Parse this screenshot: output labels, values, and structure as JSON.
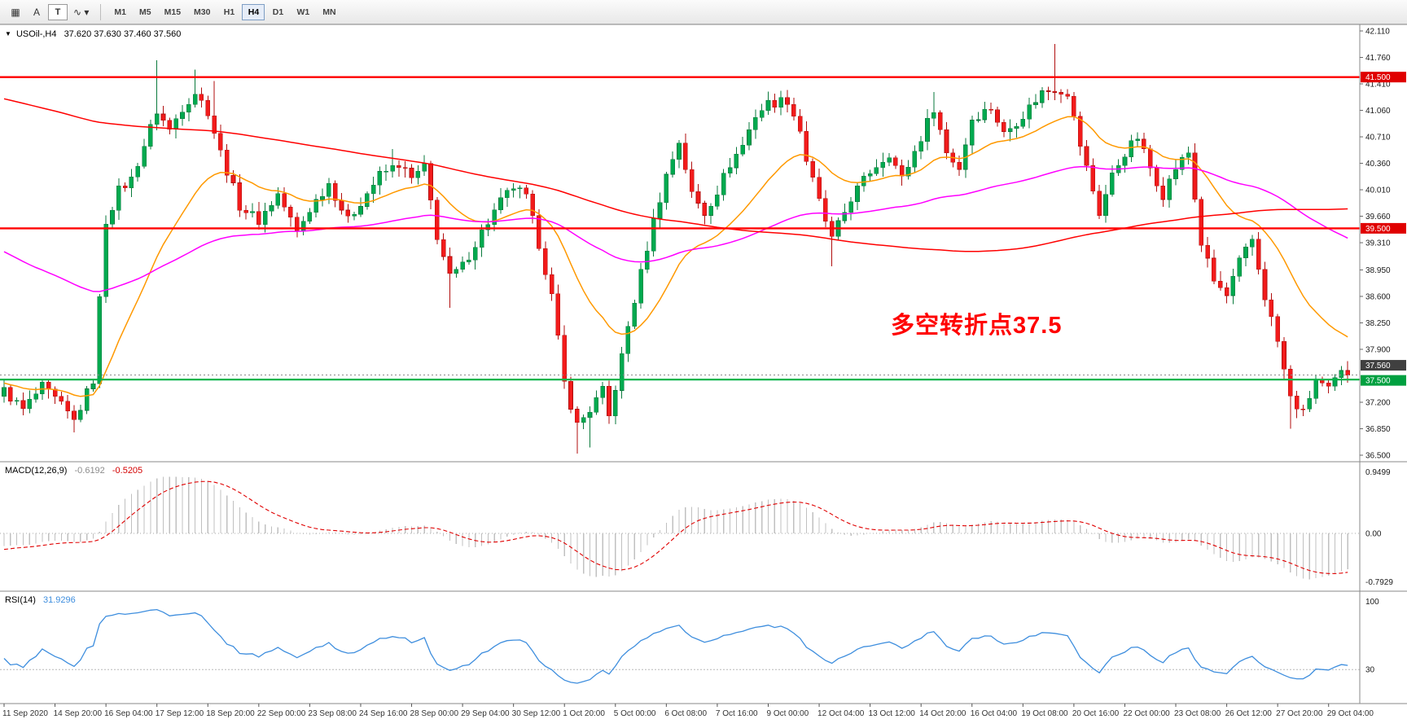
{
  "toolbar": {
    "tools": [
      {
        "id": "charts",
        "glyph": "▦",
        "name": "chart-grid-icon"
      },
      {
        "id": "text",
        "glyph": "A",
        "name": "text-tool-button"
      },
      {
        "id": "template",
        "glyph": "T",
        "name": "template-tool-button"
      },
      {
        "id": "indicators",
        "glyph": "∿",
        "caret": "▾",
        "name": "indicators-button"
      }
    ],
    "timeframes": [
      "M1",
      "M5",
      "M15",
      "M30",
      "H1",
      "H4",
      "D1",
      "W1",
      "MN"
    ],
    "active": "H4"
  },
  "chart": {
    "header": {
      "caret": "▼",
      "symbol": "USOil-,H4",
      "ohlc": "37.620 37.630 37.460 37.560"
    },
    "annotation": {
      "text": "多空转折点37.5",
      "color": "#FF0000"
    },
    "price_axis": {
      "max": 42.11,
      "min": 36.5,
      "ticks": [
        "42.110",
        "41.760",
        "41.410",
        "41.060",
        "40.710",
        "40.360",
        "40.010",
        "39.660",
        "39.310",
        "38.950",
        "38.600",
        "38.250",
        "37.900",
        "37.200",
        "36.850",
        "36.500"
      ]
    },
    "tags": [
      {
        "value": "41.500",
        "price": 41.5,
        "bg": "#E00000",
        "fg": "#FFFFFF",
        "shift": 0
      },
      {
        "value": "39.500",
        "price": 39.5,
        "bg": "#E00000",
        "fg": "#FFFFFF",
        "shift": 0
      },
      {
        "value": "37.560",
        "price": 37.56,
        "bg": "#404040",
        "fg": "#FFFFFF",
        "shift": -12
      },
      {
        "value": "37.500",
        "price": 37.5,
        "bg": "#00A040",
        "fg": "#FFFFFF",
        "shift": 1
      }
    ],
    "hlines": [
      {
        "price": 41.5,
        "color": "#FF0000",
        "width": 2.4,
        "dash": ""
      },
      {
        "price": 39.5,
        "color": "#FF0000",
        "width": 2.4,
        "dash": ""
      },
      {
        "price": 37.5,
        "color": "#00B44C",
        "width": 2.2,
        "dash": ""
      },
      {
        "price": 37.56,
        "color": "#8a8a8a",
        "width": 1,
        "dash": "2,3"
      }
    ],
    "colors": {
      "up": "#00A94F",
      "up_edge": "#0A7A3C",
      "down": "#F21B1B",
      "down_edge": "#B00E0E"
    },
    "mas": [
      {
        "type": "ema",
        "period": 21,
        "color": "#FF9900"
      },
      {
        "type": "ema",
        "period": 89,
        "color": "#FF00FF"
      },
      {
        "type": "sma",
        "period": 200,
        "color": "#FF0000"
      }
    ]
  },
  "chart_data": {
    "type": "candlestick",
    "symbol": "USOil",
    "timeframe": "H4",
    "visible_candles": 212,
    "ohlc_current": {
      "open": 37.62,
      "high": 37.63,
      "low": 37.46,
      "close": 37.56
    },
    "price_path": [
      [
        0,
        37.35
      ],
      [
        3,
        37.1
      ],
      [
        6,
        37.4
      ],
      [
        9,
        37.15
      ],
      [
        11,
        36.95
      ],
      [
        14,
        37.5
      ],
      [
        16,
        39.6
      ],
      [
        18,
        40.0
      ],
      [
        20,
        40.15
      ],
      [
        22,
        40.6
      ],
      [
        24,
        41.05
      ],
      [
        26,
        40.8
      ],
      [
        28,
        41.1
      ],
      [
        30,
        41.3
      ],
      [
        32,
        41.05
      ],
      [
        34,
        40.5
      ],
      [
        37,
        39.8
      ],
      [
        40,
        39.6
      ],
      [
        43,
        39.95
      ],
      [
        46,
        39.45
      ],
      [
        48,
        39.75
      ],
      [
        51,
        40.1
      ],
      [
        54,
        39.6
      ],
      [
        56,
        39.85
      ],
      [
        59,
        40.2
      ],
      [
        62,
        40.35
      ],
      [
        64,
        40.15
      ],
      [
        66,
        40.3
      ],
      [
        68,
        39.4
      ],
      [
        70,
        38.85
      ],
      [
        72,
        39.0
      ],
      [
        75,
        39.45
      ],
      [
        78,
        39.85
      ],
      [
        80,
        40.05
      ],
      [
        82,
        39.9
      ],
      [
        84,
        39.3
      ],
      [
        86,
        38.6
      ],
      [
        88,
        37.45
      ],
      [
        90,
        36.9
      ],
      [
        92,
        37.1
      ],
      [
        94,
        37.35
      ],
      [
        95,
        37.0
      ],
      [
        96,
        37.4
      ],
      [
        98,
        38.2
      ],
      [
        100,
        38.9
      ],
      [
        102,
        39.6
      ],
      [
        104,
        40.2
      ],
      [
        106,
        40.65
      ],
      [
        108,
        39.95
      ],
      [
        110,
        39.7
      ],
      [
        112,
        40.0
      ],
      [
        114,
        40.35
      ],
      [
        116,
        40.6
      ],
      [
        118,
        41.0
      ],
      [
        120,
        41.15
      ],
      [
        123,
        41.2
      ],
      [
        125,
        40.8
      ],
      [
        126,
        40.4
      ],
      [
        128,
        39.85
      ],
      [
        130,
        39.35
      ],
      [
        133,
        39.9
      ],
      [
        136,
        40.25
      ],
      [
        139,
        40.5
      ],
      [
        141,
        40.15
      ],
      [
        144,
        40.7
      ],
      [
        146,
        41.1
      ],
      [
        148,
        40.5
      ],
      [
        150,
        40.3
      ],
      [
        152,
        40.95
      ],
      [
        155,
        41.1
      ],
      [
        157,
        40.75
      ],
      [
        160,
        41.0
      ],
      [
        163,
        41.3
      ],
      [
        165,
        41.35
      ],
      [
        167,
        41.3
      ],
      [
        169,
        40.6
      ],
      [
        172,
        39.7
      ],
      [
        174,
        40.2
      ],
      [
        176,
        40.5
      ],
      [
        178,
        40.7
      ],
      [
        180,
        40.3
      ],
      [
        182,
        39.95
      ],
      [
        184,
        40.3
      ],
      [
        186,
        40.5
      ],
      [
        188,
        39.3
      ],
      [
        190,
        38.8
      ],
      [
        192,
        38.6
      ],
      [
        194,
        39.05
      ],
      [
        196,
        39.35
      ],
      [
        198,
        38.6
      ],
      [
        200,
        38.0
      ],
      [
        202,
        37.25
      ],
      [
        204,
        37.05
      ],
      [
        206,
        37.5
      ],
      [
        208,
        37.35
      ],
      [
        210,
        37.62
      ],
      [
        211,
        37.56
      ]
    ],
    "pre_session_path": [
      [
        -220,
        40.3
      ],
      [
        -190,
        41.6
      ],
      [
        -160,
        42.3
      ],
      [
        -130,
        42.9
      ],
      [
        -100,
        42.6
      ],
      [
        -70,
        42.2
      ],
      [
        -52,
        41.8
      ],
      [
        -44,
        40.0
      ],
      [
        -36,
        37.6
      ],
      [
        -30,
        36.9
      ],
      [
        -24,
        37.4
      ],
      [
        -16,
        37.9
      ],
      [
        -8,
        37.2
      ],
      [
        -1,
        37.3
      ]
    ],
    "wick_extremes": [
      {
        "i": 11,
        "low": 36.8
      },
      {
        "i": 24,
        "high": 41.72
      },
      {
        "i": 30,
        "high": 41.6
      },
      {
        "i": 33,
        "high": 41.45
      },
      {
        "i": 61,
        "high": 40.55
      },
      {
        "i": 70,
        "low": 38.45
      },
      {
        "i": 90,
        "low": 36.52
      },
      {
        "i": 92,
        "low": 36.6
      },
      {
        "i": 130,
        "low": 39.0
      },
      {
        "i": 146,
        "high": 41.3
      },
      {
        "i": 165,
        "high": 41.94
      },
      {
        "i": 202,
        "low": 36.85
      },
      {
        "i": 211,
        "high": 37.63,
        "low": 37.46
      }
    ]
  },
  "macd": {
    "label": "MACD(12,26,9)",
    "value_main": "-0.6192",
    "value_signal": "-0.5205",
    "axis_max": "0.9499",
    "axis_zero": "0.00",
    "axis_min": "-0.7929",
    "fast": 12,
    "slow": 26,
    "signal": 9,
    "histogram_color": "#C0C0C0",
    "signal_color": "#E00000"
  },
  "rsi": {
    "label": "RSI(14)",
    "value": "31.9296",
    "period": 14,
    "axis_max": "100",
    "level_label": "30",
    "level": 30,
    "color": "#3E8EDE"
  },
  "time_axis": {
    "candles_per_label": 8,
    "labels": [
      "11 Sep 2020",
      "14 Sep 20:00",
      "16 Sep 04:00",
      "17 Sep 12:00",
      "18 Sep 20:00",
      "22 Sep 00:00",
      "23 Sep 08:00",
      "24 Sep 16:00",
      "28 Sep 00:00",
      "29 Sep 04:00",
      "30 Sep 12:00",
      "1 Oct 20:00",
      "5 Oct 00:00",
      "6 Oct 08:00",
      "7 Oct 16:00",
      "9 Oct 00:00",
      "12 Oct 04:00",
      "13 Oct 12:00",
      "14 Oct 20:00",
      "16 Oct 04:00",
      "19 Oct 08:00",
      "20 Oct 16:00",
      "22 Oct 00:00",
      "23 Oct 08:00",
      "26 Oct 12:00",
      "27 Oct 20:00",
      "29 Oct 04:00"
    ]
  }
}
